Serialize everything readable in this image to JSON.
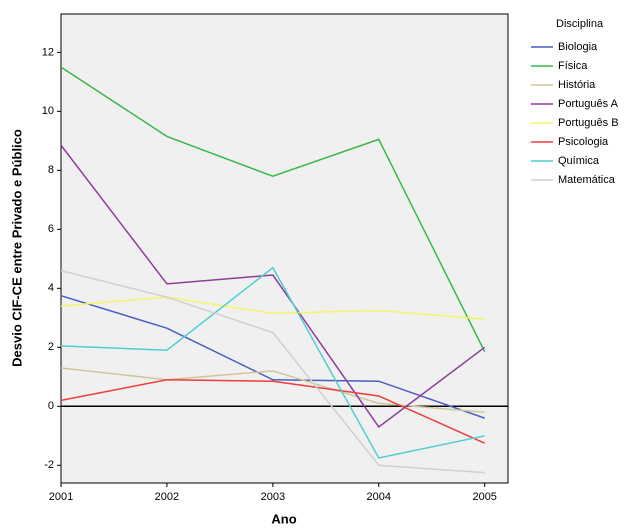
{
  "chart_data": {
    "type": "line",
    "x_label": "Ano",
    "y_label": "Desvio CIF-CE entre Privado e Público",
    "legend_title": "Disciplina",
    "x": [
      2001,
      2002,
      2003,
      2004,
      2005
    ],
    "xlim": [
      2001,
      2005.22
    ],
    "xticks": [
      2001,
      2002,
      2003,
      2004,
      2005
    ],
    "ylim": [
      -2.6,
      13.3
    ],
    "yticks": [
      -2,
      0,
      2,
      4,
      6,
      8,
      10,
      12
    ],
    "reference_line": 0,
    "series": [
      {
        "name": "Biologia",
        "color": "#4a5fc1",
        "values": [
          3.75,
          2.65,
          0.9,
          0.85,
          -0.4
        ]
      },
      {
        "name": "Física",
        "color": "#3cb84a",
        "values": [
          11.5,
          9.15,
          7.8,
          9.05,
          1.85
        ]
      },
      {
        "name": "História",
        "color": "#cfc79b",
        "values": [
          1.3,
          0.9,
          1.2,
          0.1,
          -0.2
        ]
      },
      {
        "name": "Português A",
        "color": "#8e3c9a",
        "values": [
          8.85,
          4.15,
          4.45,
          -0.7,
          2.0
        ]
      },
      {
        "name": "Português B",
        "color": "#f5f56a",
        "values": [
          3.4,
          3.7,
          3.15,
          3.25,
          2.95
        ]
      },
      {
        "name": "Psicologia",
        "color": "#f03c3c",
        "values": [
          0.2,
          0.9,
          0.85,
          0.35,
          -1.25
        ]
      },
      {
        "name": "Química",
        "color": "#4ecfcf",
        "values": [
          2.05,
          1.9,
          4.7,
          -1.75,
          -1.0
        ]
      },
      {
        "name": "Matemática",
        "color": "#d0d0d0",
        "values": [
          4.6,
          3.7,
          2.5,
          -2.0,
          -2.25
        ]
      }
    ]
  }
}
